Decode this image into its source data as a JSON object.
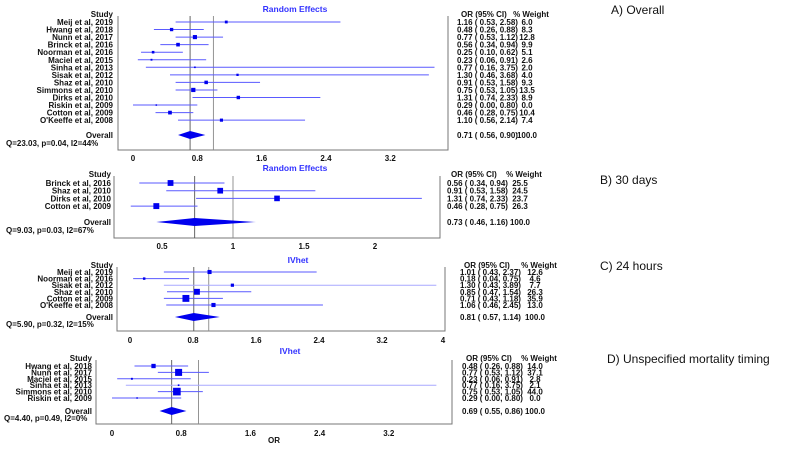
{
  "colors": {
    "marker": "#0000ee",
    "ci_line": "#5a5aff",
    "ci_light": "#a8a8ff",
    "ref_line": "#888888",
    "title": "#3333ff"
  },
  "chart_data": [
    {
      "type": "forest",
      "panel_label": "A) Overall",
      "title": "Random Effects",
      "col_study": "Study",
      "col_or": "OR (95% CI)",
      "col_weight": "% Weight",
      "ticks": [
        0,
        0.8,
        1.6,
        2.4,
        3.2
      ],
      "tick_labels": [
        "0",
        "0.8",
        "1.6",
        "2.4",
        "3.2"
      ],
      "studies": [
        {
          "name": "Meij et al, 2019",
          "or": 1.16,
          "lo": 0.53,
          "hi": 2.58,
          "weight": 6.0,
          "or_text": "1.16  ( 0.53,  2.58)",
          "weight_text": "6.0"
        },
        {
          "name": "Hwang et al, 2018",
          "or": 0.48,
          "lo": 0.26,
          "hi": 0.88,
          "weight": 8.3,
          "or_text": "0.48  ( 0.26,  0.88)",
          "weight_text": "8.3"
        },
        {
          "name": "Nunn et al, 2017",
          "or": 0.77,
          "lo": 0.53,
          "hi": 1.12,
          "weight": 12.8,
          "or_text": "0.77  ( 0.53,  1.12)",
          "weight_text": "12.8"
        },
        {
          "name": "Brinck et al, 2016",
          "or": 0.56,
          "lo": 0.34,
          "hi": 0.94,
          "weight": 9.9,
          "or_text": "0.56  ( 0.34,  0.94)",
          "weight_text": "9.9"
        },
        {
          "name": "Noorman et al, 2016",
          "or": 0.25,
          "lo": 0.1,
          "hi": 0.62,
          "weight": 5.1,
          "or_text": "0.25  ( 0.10,  0.62)",
          "weight_text": "5.1"
        },
        {
          "name": "Maciel et al, 2015",
          "or": 0.23,
          "lo": 0.06,
          "hi": 0.91,
          "weight": 2.6,
          "or_text": "0.23  ( 0.06,  0.91)",
          "weight_text": "2.6"
        },
        {
          "name": "Sinha et al, 2013",
          "or": 0.77,
          "lo": 0.16,
          "hi": 3.75,
          "weight": 2.0,
          "or_text": "0.77  ( 0.16,  3.75)",
          "weight_text": "2.0"
        },
        {
          "name": "Sisak et al, 2012",
          "or": 1.3,
          "lo": 0.46,
          "hi": 3.68,
          "weight": 4.0,
          "or_text": "1.30  ( 0.46,  3.68)",
          "weight_text": "4.0"
        },
        {
          "name": "Shaz et al, 2010",
          "or": 0.91,
          "lo": 0.53,
          "hi": 1.58,
          "weight": 9.3,
          "or_text": "0.91  ( 0.53,  1.58)",
          "weight_text": "9.3"
        },
        {
          "name": "Simmons et al, 2010",
          "or": 0.75,
          "lo": 0.53,
          "hi": 1.05,
          "weight": 13.5,
          "or_text": "0.75  ( 0.53,  1.05)",
          "weight_text": "13.5"
        },
        {
          "name": "Dirks et al, 2010",
          "or": 1.31,
          "lo": 0.74,
          "hi": 2.33,
          "weight": 8.9,
          "or_text": "1.31  ( 0.74,  2.33)",
          "weight_text": "8.9"
        },
        {
          "name": "Riskin et al, 2009",
          "or": 0.29,
          "lo": 0.0,
          "hi": 0.8,
          "weight": 0.0,
          "or_text": "0.29  ( 0.00,  0.80)",
          "weight_text": "0.0"
        },
        {
          "name": "Cotton et al, 2009",
          "or": 0.46,
          "lo": 0.28,
          "hi": 0.75,
          "weight": 10.4,
          "or_text": "0.46  ( 0.28,  0.75)",
          "weight_text": "10.4"
        },
        {
          "name": "O'Keeffe et al, 2008",
          "or": 1.1,
          "lo": 0.56,
          "hi": 2.14,
          "weight": 7.4,
          "or_text": "1.10  ( 0.56,  2.14)",
          "weight_text": "7.4"
        }
      ],
      "overall": {
        "label": "Overall",
        "or": 0.71,
        "lo": 0.56,
        "hi": 0.9,
        "or_text": "0.71  ( 0.56,  0.90)",
        "weight_text": "100.0"
      },
      "heterogeneity": "Q=23.03, p=0.04, I2=44%"
    },
    {
      "type": "forest",
      "panel_label": "B) 30 days",
      "title": "Random Effects",
      "col_study": "Study",
      "col_or": "OR (95% CI)",
      "col_weight": "% Weight",
      "ticks": [
        0.5,
        1,
        1.5,
        2
      ],
      "tick_labels": [
        "0.5",
        "1",
        "1.5",
        "2"
      ],
      "studies": [
        {
          "name": "Brinck et al, 2016",
          "or": 0.56,
          "lo": 0.34,
          "hi": 0.94,
          "weight": 25.5,
          "or_text": "0.56  ( 0.34,  0.94)",
          "weight_text": "25.5"
        },
        {
          "name": "Shaz et al, 2010",
          "or": 0.91,
          "lo": 0.53,
          "hi": 1.58,
          "weight": 24.5,
          "or_text": "0.91  ( 0.53,  1.58)",
          "weight_text": "24.5"
        },
        {
          "name": "Dirks et al, 2010",
          "or": 1.31,
          "lo": 0.74,
          "hi": 2.33,
          "weight": 23.7,
          "or_text": "1.31  ( 0.74,  2.33)",
          "weight_text": "23.7"
        },
        {
          "name": "Cotton et al, 2009",
          "or": 0.46,
          "lo": 0.28,
          "hi": 0.75,
          "weight": 26.3,
          "or_text": "0.46  ( 0.28,  0.75)",
          "weight_text": "26.3"
        }
      ],
      "overall": {
        "label": "Overall",
        "or": 0.73,
        "lo": 0.46,
        "hi": 1.16,
        "or_text": "0.73  ( 0.46,  1.16)",
        "weight_text": "100.0"
      },
      "heterogeneity": "Q=9.03, p=0.03, I2=67%"
    },
    {
      "type": "forest",
      "panel_label": "C) 24 hours",
      "title": "IVhet",
      "col_study": "Study",
      "col_or": "OR (95% CI)",
      "col_weight": "% Weight",
      "ticks": [
        0,
        0.8,
        1.6,
        2.4,
        3.2,
        4
      ],
      "tick_labels": [
        "0",
        "0.8",
        "1.6",
        "2.4",
        "3.2",
        "4"
      ],
      "studies": [
        {
          "name": "Meij et al, 2019",
          "or": 1.01,
          "lo": 0.43,
          "hi": 2.37,
          "weight": 12.6,
          "or_text": "1.01  ( 0.43,  2.37)",
          "weight_text": "12.6"
        },
        {
          "name": "Noorman et al, 2016",
          "or": 0.18,
          "lo": 0.04,
          "hi": 0.75,
          "weight": 4.6,
          "or_text": "0.18  ( 0.04,  0.75)",
          "weight_text": "4.6"
        },
        {
          "name": "Sisak et al, 2012",
          "or": 1.3,
          "lo": 0.43,
          "hi": 3.89,
          "weight": 7.7,
          "or_text": "1.30  ( 0.43,  3.89)",
          "weight_text": "7.7"
        },
        {
          "name": "Shaz et al, 2010",
          "or": 0.85,
          "lo": 0.47,
          "hi": 1.54,
          "weight": 26.3,
          "or_text": "0.85  ( 0.47,  1.54)",
          "weight_text": "26.3"
        },
        {
          "name": "Cotton et al, 2009",
          "or": 0.71,
          "lo": 0.43,
          "hi": 1.18,
          "weight": 35.9,
          "or_text": "0.71  ( 0.43,  1.18)",
          "weight_text": "35.9"
        },
        {
          "name": "O'Keeffe et al, 2008",
          "or": 1.06,
          "lo": 0.46,
          "hi": 2.45,
          "weight": 13.0,
          "or_text": "1.06  ( 0.46,  2.45)",
          "weight_text": "13.0"
        }
      ],
      "overall": {
        "label": "Overall",
        "or": 0.81,
        "lo": 0.57,
        "hi": 1.14,
        "or_text": "0.81  ( 0.57,  1.14)",
        "weight_text": "100.0"
      },
      "heterogeneity": "Q=5.90, p=0.32, I2=15%"
    },
    {
      "type": "forest",
      "panel_label": "D) Unspecified mortality timing",
      "title": "IVhet",
      "col_study": "Study",
      "col_or": "OR (95% CI)",
      "col_weight": "% Weight",
      "ticks": [
        0,
        0.8,
        1.6,
        2.4,
        3.2
      ],
      "tick_labels": [
        "0",
        "0.8",
        "1.6",
        "2.4",
        "3.2"
      ],
      "xlabel": "OR",
      "studies": [
        {
          "name": "Hwang et al, 2018",
          "or": 0.48,
          "lo": 0.26,
          "hi": 0.88,
          "weight": 14.0,
          "or_text": "0.48  ( 0.26,  0.88)",
          "weight_text": "14.0"
        },
        {
          "name": "Nunn et al, 2017",
          "or": 0.77,
          "lo": 0.53,
          "hi": 1.12,
          "weight": 37.1,
          "or_text": "0.77  ( 0.53,  1.12)",
          "weight_text": "37.1"
        },
        {
          "name": "Maciel et al, 2015",
          "or": 0.23,
          "lo": 0.06,
          "hi": 0.91,
          "weight": 2.8,
          "or_text": "0.23  ( 0.06,  0.91)",
          "weight_text": "2.8"
        },
        {
          "name": "Sinha et al, 2013",
          "or": 0.77,
          "lo": 0.16,
          "hi": 3.75,
          "weight": 2.1,
          "or_text": "0.77  ( 0.16,  3.75)",
          "weight_text": "2.1"
        },
        {
          "name": "Simmons et al, 2010",
          "or": 0.75,
          "lo": 0.53,
          "hi": 1.05,
          "weight": 44.0,
          "or_text": "0.75  ( 0.53,  1.05)",
          "weight_text": "44.0"
        },
        {
          "name": "Riskin et al, 2009",
          "or": 0.29,
          "lo": 0.0,
          "hi": 0.8,
          "weight": 0.0,
          "or_text": "0.29  ( 0.00,  0.80)",
          "weight_text": "0.0"
        }
      ],
      "overall": {
        "label": "Overall",
        "or": 0.69,
        "lo": 0.55,
        "hi": 0.86,
        "or_text": "0.69  ( 0.55,  0.86)",
        "weight_text": "100.0"
      },
      "heterogeneity": "Q=4.40, p=0.49, I2=0%"
    }
  ]
}
